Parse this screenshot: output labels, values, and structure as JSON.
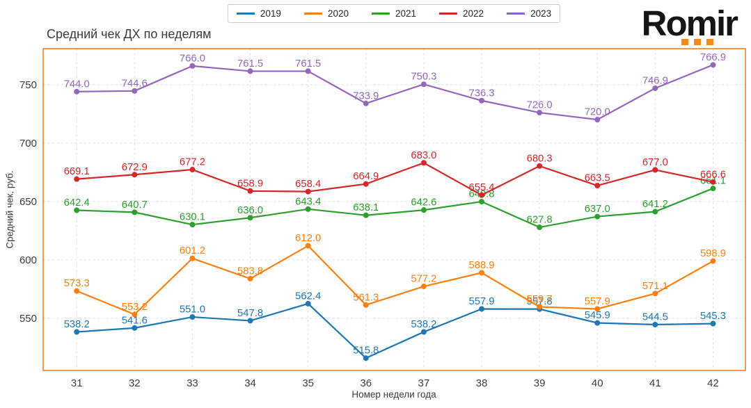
{
  "logo": {
    "text": "Romir",
    "accent_color": "#f28b1e"
  },
  "chart_data": {
    "type": "line",
    "title": "Средний чек ДХ по неделям",
    "xlabel": "Номер недели года",
    "ylabel": "Средний чек, руб.",
    "x": [
      31,
      32,
      33,
      34,
      35,
      36,
      37,
      38,
      39,
      40,
      41,
      42
    ],
    "series": [
      {
        "name": "2019",
        "color": "#1f77b4",
        "values": [
          538.2,
          541.6,
          551.0,
          547.8,
          562.4,
          515.8,
          538.2,
          557.9,
          557.8,
          545.9,
          544.5,
          545.3
        ]
      },
      {
        "name": "2020",
        "color": "#ff7f0e",
        "values": [
          573.3,
          553.2,
          601.2,
          583.8,
          612.0,
          561.3,
          577.2,
          588.9,
          559.7,
          557.9,
          571.1,
          598.9
        ]
      },
      {
        "name": "2021",
        "color": "#2ca02c",
        "values": [
          642.4,
          640.7,
          630.1,
          636.0,
          643.4,
          638.1,
          642.6,
          649.8,
          627.8,
          637.0,
          641.2,
          661.1
        ]
      },
      {
        "name": "2022",
        "color": "#d62728",
        "values": [
          669.1,
          672.9,
          677.2,
          658.9,
          658.4,
          664.9,
          683.0,
          655.4,
          680.3,
          663.5,
          677.0,
          666.6
        ]
      },
      {
        "name": "2023",
        "color": "#9467bd",
        "values": [
          744.0,
          744.6,
          766.0,
          761.5,
          761.5,
          733.9,
          750.3,
          736.3,
          726.0,
          720.0,
          746.9,
          766.9
        ]
      }
    ],
    "yticks": [
      550,
      600,
      650,
      700,
      750
    ],
    "ylim": [
      505.2,
      780.8
    ],
    "xlim": [
      30.42,
      42.56
    ],
    "grid": true,
    "legend_position": "top-center",
    "plot_border_color": "#f08124",
    "grid_color": "#e2e2e6"
  }
}
